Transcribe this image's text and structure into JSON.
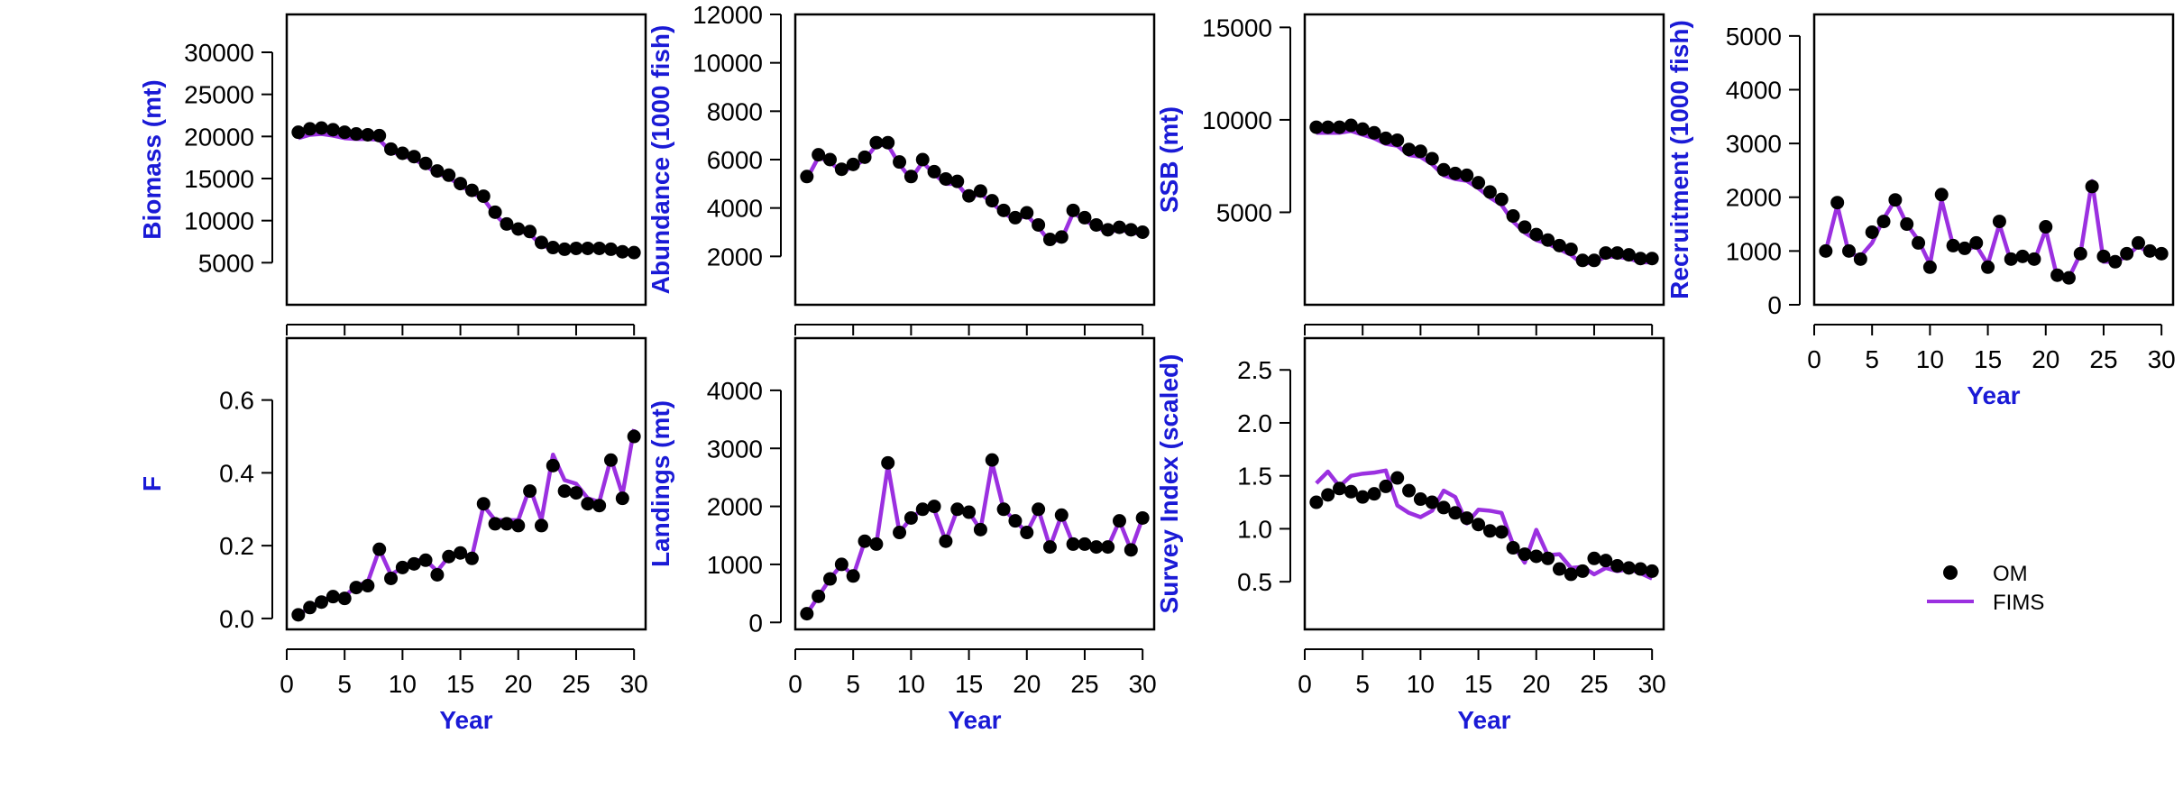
{
  "colors": {
    "om_points": "#000000",
    "fims_line": "#9b30e0",
    "axis_title": "#1a1ad6"
  },
  "legend": {
    "entries": [
      {
        "label": "OM",
        "marker": "point",
        "color": "#000000"
      },
      {
        "label": "FIMS",
        "marker": "line",
        "color": "#9b30e0"
      }
    ],
    "placement": "bottom-right"
  },
  "chart_data": [
    {
      "id": "biomass",
      "type": "line",
      "xlabel": "",
      "ylabel": "Biomass (mt)",
      "xlim": [
        0,
        31
      ],
      "ylim": [
        0,
        34500
      ],
      "xticks": [],
      "yticks": [
        5000,
        10000,
        15000,
        20000,
        25000,
        30000
      ],
      "grid": false,
      "x": [
        1,
        2,
        3,
        4,
        5,
        6,
        7,
        8,
        9,
        10,
        11,
        12,
        13,
        14,
        15,
        16,
        17,
        18,
        19,
        20,
        21,
        22,
        23,
        24,
        25,
        26,
        27,
        28,
        29,
        30
      ],
      "series": [
        {
          "name": "OM",
          "style": "points",
          "values": [
            20500,
            20900,
            21000,
            20800,
            20500,
            20300,
            20200,
            20100,
            18500,
            18000,
            17600,
            16800,
            15900,
            15400,
            14400,
            13600,
            12900,
            11000,
            9600,
            9000,
            8700,
            7400,
            6800,
            6600,
            6700,
            6700,
            6700,
            6600,
            6300,
            6200
          ]
        },
        {
          "name": "FIMS",
          "style": "line",
          "values": [
            19800,
            20200,
            20300,
            20100,
            19800,
            19700,
            19700,
            19600,
            18200,
            17700,
            17300,
            16500,
            15600,
            15100,
            14200,
            13300,
            12600,
            10700,
            9400,
            8800,
            8400,
            7100,
            6600,
            6400,
            6500,
            6500,
            6500,
            6400,
            6100,
            6000
          ]
        }
      ]
    },
    {
      "id": "abundance",
      "type": "line",
      "xlabel": "",
      "ylabel": "Abundance (1000 fish)",
      "xlim": [
        0,
        31
      ],
      "ylim": [
        0,
        12000
      ],
      "xticks": [],
      "yticks": [
        2000,
        4000,
        6000,
        8000,
        10000,
        12000
      ],
      "grid": false,
      "x": [
        1,
        2,
        3,
        4,
        5,
        6,
        7,
        8,
        9,
        10,
        11,
        12,
        13,
        14,
        15,
        16,
        17,
        18,
        19,
        20,
        21,
        22,
        23,
        24,
        25,
        26,
        27,
        28,
        29,
        30
      ],
      "series": [
        {
          "name": "OM",
          "style": "points",
          "values": [
            5300,
            6200,
            6000,
            5600,
            5800,
            6100,
            6700,
            6700,
            5900,
            5300,
            6000,
            5500,
            5200,
            5100,
            4500,
            4700,
            4300,
            3900,
            3600,
            3800,
            3300,
            2700,
            2800,
            3900,
            3600,
            3300,
            3100,
            3200,
            3100,
            3000
          ]
        },
        {
          "name": "FIMS",
          "style": "line",
          "values": [
            5200,
            6100,
            5900,
            5500,
            5700,
            6000,
            6600,
            6600,
            5800,
            5200,
            5900,
            5400,
            5000,
            5000,
            4400,
            4600,
            4200,
            3800,
            3500,
            3700,
            3200,
            2600,
            2700,
            3800,
            3500,
            3200,
            3000,
            3100,
            3000,
            2900
          ]
        }
      ]
    },
    {
      "id": "ssb",
      "type": "line",
      "xlabel": "",
      "ylabel": "SSB (mt)",
      "xlim": [
        0,
        31
      ],
      "ylim": [
        0,
        15700
      ],
      "xticks": [],
      "yticks": [
        5000,
        10000,
        15000
      ],
      "grid": false,
      "x": [
        1,
        2,
        3,
        4,
        5,
        6,
        7,
        8,
        9,
        10,
        11,
        12,
        13,
        14,
        15,
        16,
        17,
        18,
        19,
        20,
        21,
        22,
        23,
        24,
        25,
        26,
        27,
        28,
        29,
        30
      ],
      "series": [
        {
          "name": "OM",
          "style": "points",
          "values": [
            9600,
            9600,
            9600,
            9700,
            9500,
            9300,
            9000,
            8900,
            8400,
            8300,
            7900,
            7300,
            7100,
            7000,
            6600,
            6100,
            5700,
            4800,
            4200,
            3800,
            3500,
            3200,
            3000,
            2400,
            2400,
            2800,
            2800,
            2700,
            2500,
            2500
          ]
        },
        {
          "name": "FIMS",
          "style": "line",
          "values": [
            9300,
            9300,
            9300,
            9400,
            9200,
            9000,
            8700,
            8600,
            8100,
            8000,
            7600,
            7000,
            6800,
            6700,
            6300,
            5800,
            5400,
            4500,
            3900,
            3500,
            3300,
            3000,
            2700,
            2200,
            2300,
            2600,
            2600,
            2500,
            2300,
            2300
          ]
        }
      ]
    },
    {
      "id": "recruitment",
      "type": "line",
      "xlabel": "Year",
      "ylabel": "Recruitment (1000 fish)",
      "xlim": [
        0,
        31
      ],
      "ylim": [
        0,
        5400
      ],
      "xticks": [
        0,
        5,
        10,
        15,
        20,
        25,
        30
      ],
      "yticks": [
        0,
        1000,
        2000,
        3000,
        4000,
        5000
      ],
      "grid": false,
      "x": [
        1,
        2,
        3,
        4,
        5,
        6,
        7,
        8,
        9,
        10,
        11,
        12,
        13,
        14,
        15,
        16,
        17,
        18,
        19,
        20,
        21,
        22,
        23,
        24,
        25,
        26,
        27,
        28,
        29,
        30
      ],
      "series": [
        {
          "name": "OM",
          "style": "points",
          "values": [
            1000,
            1900,
            1000,
            850,
            1350,
            1550,
            1950,
            1500,
            1150,
            700,
            2050,
            1100,
            1050,
            1150,
            700,
            1550,
            850,
            900,
            850,
            1450,
            550,
            500,
            950,
            2200,
            900,
            800,
            950,
            1150,
            1000,
            950
          ]
        },
        {
          "name": "FIMS",
          "style": "line",
          "values": [
            1000,
            1850,
            950,
            900,
            1150,
            1600,
            1950,
            1500,
            1200,
            750,
            1950,
            1100,
            1000,
            1100,
            750,
            1500,
            800,
            900,
            800,
            1400,
            500,
            500,
            950,
            2300,
            800,
            800,
            900,
            1100,
            950,
            1000
          ]
        }
      ]
    },
    {
      "id": "f",
      "type": "line",
      "xlabel": "Year",
      "ylabel": "F",
      "xlim": [
        0,
        31
      ],
      "ylim": [
        -0.03,
        0.77
      ],
      "xticks": [
        0,
        5,
        10,
        15,
        20,
        25,
        30
      ],
      "yticks": [
        0.0,
        0.2,
        0.4,
        0.6
      ],
      "ytick_labels": [
        "0.0",
        "0.2",
        "0.4",
        "0.6"
      ],
      "grid": false,
      "x": [
        1,
        2,
        3,
        4,
        5,
        6,
        7,
        8,
        9,
        10,
        11,
        12,
        13,
        14,
        15,
        16,
        17,
        18,
        19,
        20,
        21,
        22,
        23,
        24,
        25,
        26,
        27,
        28,
        29,
        30
      ],
      "series": [
        {
          "name": "OM",
          "style": "points",
          "values": [
            0.01,
            0.03,
            0.045,
            0.06,
            0.055,
            0.085,
            0.09,
            0.19,
            0.11,
            0.14,
            0.15,
            0.16,
            0.12,
            0.17,
            0.18,
            0.165,
            0.315,
            0.26,
            0.26,
            0.255,
            0.35,
            0.255,
            0.42,
            0.35,
            0.345,
            0.315,
            0.31,
            0.435,
            0.33,
            0.5
          ]
        },
        {
          "name": "FIMS",
          "style": "line",
          "values": [
            0.01,
            0.03,
            0.05,
            0.06,
            0.06,
            0.09,
            0.1,
            0.19,
            0.12,
            0.14,
            0.16,
            0.16,
            0.13,
            0.17,
            0.18,
            0.17,
            0.31,
            0.27,
            0.27,
            0.27,
            0.36,
            0.27,
            0.45,
            0.38,
            0.37,
            0.33,
            0.32,
            0.44,
            0.34,
            0.52
          ]
        }
      ]
    },
    {
      "id": "landings",
      "type": "line",
      "xlabel": "Year",
      "ylabel": "Landings (mt)",
      "xlim": [
        0,
        31
      ],
      "ylim": [
        -120,
        4900
      ],
      "xticks": [
        0,
        5,
        10,
        15,
        20,
        25,
        30
      ],
      "yticks": [
        0,
        1000,
        2000,
        3000,
        4000
      ],
      "grid": false,
      "x": [
        1,
        2,
        3,
        4,
        5,
        6,
        7,
        8,
        9,
        10,
        11,
        12,
        13,
        14,
        15,
        16,
        17,
        18,
        19,
        20,
        21,
        22,
        23,
        24,
        25,
        26,
        27,
        28,
        29,
        30
      ],
      "series": [
        {
          "name": "OM",
          "style": "points",
          "values": [
            150,
            450,
            750,
            1000,
            800,
            1400,
            1350,
            2750,
            1550,
            1800,
            1950,
            2000,
            1400,
            1950,
            1900,
            1600,
            2800,
            1950,
            1750,
            1550,
            1950,
            1300,
            1850,
            1350,
            1350,
            1300,
            1300,
            1750,
            1250,
            1800
          ]
        },
        {
          "name": "FIMS",
          "style": "line",
          "values": [
            150,
            450,
            750,
            1000,
            800,
            1400,
            1350,
            2700,
            1550,
            1800,
            1950,
            1950,
            1400,
            1950,
            1900,
            1600,
            2750,
            1950,
            1750,
            1550,
            1950,
            1300,
            1850,
            1350,
            1350,
            1300,
            1300,
            1750,
            1250,
            1800
          ]
        }
      ]
    },
    {
      "id": "survey",
      "type": "line",
      "xlabel": "Year",
      "ylabel": "Survey Index (scaled)",
      "xlim": [
        0,
        31
      ],
      "ylim": [
        0.05,
        2.8
      ],
      "xticks": [
        0,
        5,
        10,
        15,
        20,
        25,
        30
      ],
      "yticks": [
        0.5,
        1.0,
        1.5,
        2.0,
        2.5
      ],
      "ytick_labels": [
        "0.5",
        "1.0",
        "1.5",
        "2.0",
        "2.5"
      ],
      "grid": false,
      "x": [
        1,
        2,
        3,
        4,
        5,
        6,
        7,
        8,
        9,
        10,
        11,
        12,
        13,
        14,
        15,
        16,
        17,
        18,
        19,
        20,
        21,
        22,
        23,
        24,
        25,
        26,
        27,
        28,
        29,
        30
      ],
      "series": [
        {
          "name": "OM",
          "style": "points",
          "values": [
            1.25,
            1.32,
            1.38,
            1.35,
            1.3,
            1.33,
            1.4,
            1.48,
            1.36,
            1.28,
            1.25,
            1.2,
            1.15,
            1.1,
            1.04,
            0.98,
            0.97,
            0.82,
            0.76,
            0.74,
            0.72,
            0.62,
            0.57,
            0.6,
            0.72,
            0.7,
            0.65,
            0.63,
            0.62,
            0.6
          ]
        },
        {
          "name": "FIMS",
          "style": "line",
          "values": [
            1.43,
            1.54,
            1.4,
            1.5,
            1.52,
            1.53,
            1.55,
            1.22,
            1.15,
            1.11,
            1.17,
            1.36,
            1.3,
            1.05,
            1.18,
            1.17,
            1.15,
            0.85,
            0.68,
            0.99,
            0.75,
            0.76,
            0.63,
            0.64,
            0.57,
            0.63,
            0.6,
            0.62,
            0.58,
            0.53
          ]
        }
      ]
    }
  ]
}
